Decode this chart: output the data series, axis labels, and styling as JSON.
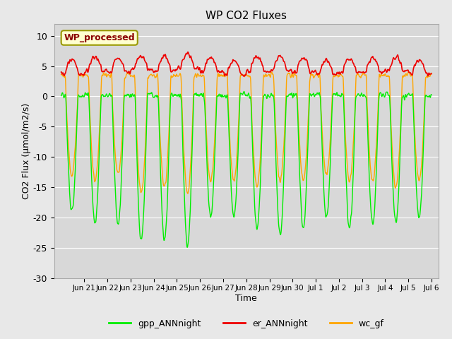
{
  "title": "WP CO2 Fluxes",
  "xlabel": "Time",
  "ylabel": "CO2 Flux (μmol/m2/s)",
  "ylim": [
    -30,
    12
  ],
  "yticks": [
    -30,
    -25,
    -20,
    -15,
    -10,
    -5,
    0,
    5,
    10
  ],
  "annotation": "WP_processed",
  "annotation_color": "#8B0000",
  "annotation_bg": "#FFFFD0",
  "annotation_edge": "#999900",
  "gpp_color": "#00EE00",
  "er_color": "#EE0000",
  "wc_color": "#FFA500",
  "fig_bg": "#E8E8E8",
  "plot_bg": "#D8D8D8",
  "grid_color": "#FFFFFF",
  "n_days": 16,
  "points_per_day": 96,
  "tick_labels": [
    "Jun 21",
    "Jun 22",
    "Jun 23",
    "Jun 24",
    "Jun 25",
    "Jun 26",
    "Jun 27",
    "Jun 28",
    "Jun 29",
    "Jun 30",
    "Jul 1",
    "Jul 2",
    "Jul 3",
    "Jul 4",
    "Jul 5",
    "Jul 6"
  ]
}
